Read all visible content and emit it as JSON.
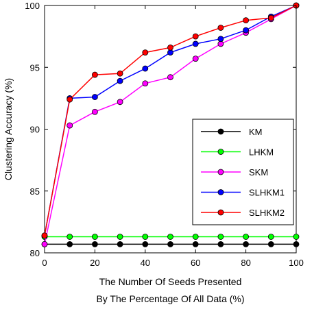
{
  "chart_data": {
    "type": "line",
    "xlabel_line1": "The Number Of Seeds Presented",
    "xlabel_line2": "By The Percentage Of All Data (%)",
    "ylabel": "Clustering Accuracy (%)",
    "xlim": [
      0,
      100
    ],
    "ylim": [
      80,
      100
    ],
    "x_ticks": [
      0,
      20,
      40,
      60,
      80,
      100
    ],
    "y_ticks": [
      80,
      85,
      90,
      95,
      100
    ],
    "grid": false,
    "legend_position": "right",
    "x": [
      0,
      10,
      20,
      30,
      40,
      50,
      60,
      70,
      80,
      90,
      100
    ],
    "series": [
      {
        "name": "KM",
        "color": "#000000",
        "values": [
          80.7,
          80.7,
          80.7,
          80.7,
          80.7,
          80.7,
          80.7,
          80.7,
          80.7,
          80.7,
          80.7
        ]
      },
      {
        "name": "LHKM",
        "color": "#00ff00",
        "values": [
          81.3,
          81.3,
          81.3,
          81.3,
          81.3,
          81.3,
          81.3,
          81.3,
          81.3,
          81.3,
          81.3
        ]
      },
      {
        "name": "SKM",
        "color": "#ff00ff",
        "values": [
          80.7,
          90.3,
          91.4,
          92.2,
          93.7,
          94.2,
          95.7,
          96.9,
          97.8,
          98.9,
          100.0
        ]
      },
      {
        "name": "SLHKM1",
        "color": "#0000ff",
        "values": [
          81.4,
          92.5,
          92.6,
          93.9,
          94.9,
          96.2,
          96.9,
          97.3,
          98.0,
          99.1,
          100.0
        ]
      },
      {
        "name": "SLHKM2",
        "color": "#ff0000",
        "values": [
          81.4,
          92.4,
          94.4,
          94.5,
          96.2,
          96.6,
          97.5,
          98.2,
          98.8,
          99.0,
          100.0
        ]
      }
    ]
  }
}
